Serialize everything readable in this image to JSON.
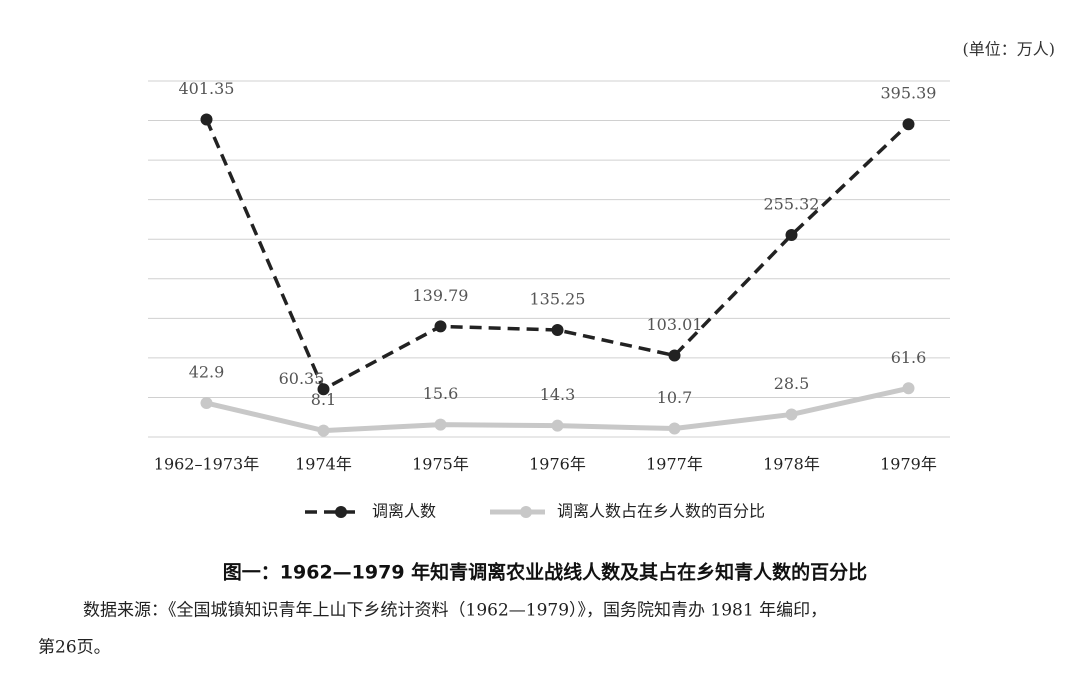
{
  "chart_data": {
    "type": "line",
    "unit": "(单位：万人)",
    "title": "图一：1962—1979 年知青调离农业战线人数及其占在乡知青人数的百分比",
    "source": "数据来源：《全国城镇知识青年上山下乡统计资料（1962—1979）》，国务院知青办 1981 年编印，",
    "source_continued": "第26页。",
    "categories": [
      "1962–1973年",
      "1974年",
      "1975年",
      "1976年",
      "1977年",
      "1978年",
      "1979年"
    ],
    "series": [
      {
        "name": "调离人数",
        "color": "#222222",
        "dashed": true,
        "values": [
          401.35,
          60.35,
          139.79,
          135.25,
          103.01,
          255.32,
          395.39
        ]
      },
      {
        "name": "调离人数占在乡人数的百分比",
        "color": "#c8c8c8",
        "dashed": false,
        "values": [
          42.9,
          8.1,
          15.6,
          14.3,
          10.7,
          28.5,
          61.6
        ]
      }
    ],
    "ylim": [
      0,
      450
    ],
    "yticks": [
      0,
      50,
      100,
      150,
      200,
      250,
      300,
      350,
      400,
      450
    ],
    "show_tick_labels": false,
    "grid": true
  }
}
